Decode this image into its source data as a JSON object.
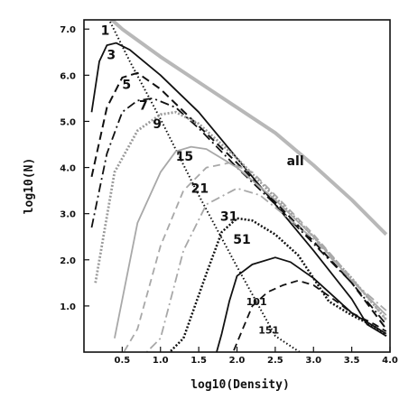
{
  "chart_data": {
    "type": "line",
    "title": "",
    "xlabel": "log10(Density)",
    "ylabel": "log10(N)",
    "xlim": [
      0,
      4.0
    ],
    "ylim": [
      0,
      7.2
    ],
    "grid": false,
    "x_ticks": [
      "0.5",
      "1.0",
      "1.5",
      "2.0",
      "2.5",
      "3.0",
      "3.5",
      "4.0"
    ],
    "y_ticks": [
      "1.0",
      "2.0",
      "3.0",
      "4.0",
      "5.0",
      "6.0",
      "7.0"
    ],
    "series": [
      {
        "name": "all",
        "color": "#b8b8b8",
        "dash": "solid",
        "width": 4,
        "label_at": [
          2.65,
          4.05
        ],
        "label_size": 14,
        "x": [
          0.3,
          0.5,
          1.0,
          1.5,
          2.0,
          2.5,
          3.0,
          3.5,
          3.95
        ],
        "y": [
          7.3,
          7.0,
          6.4,
          5.85,
          5.3,
          4.75,
          4.05,
          3.3,
          2.55
        ]
      },
      {
        "name": "1",
        "color": "#111111",
        "dash": "1.5,2.5",
        "width": 2,
        "label_at": [
          0.22,
          6.88
        ],
        "label_size": 14,
        "x": [
          0.3,
          0.6,
          1.0,
          1.5,
          2.0,
          2.5,
          3.0,
          3.5,
          3.8
        ],
        "y": [
          7.3,
          6.3,
          5.05,
          3.4,
          1.85,
          0.35,
          -0.2,
          -0.2,
          -0.2
        ]
      },
      {
        "name": "3",
        "color": "#111111",
        "dash": "solid",
        "width": 1.8,
        "label_at": [
          0.3,
          6.35
        ],
        "label_size": 14,
        "x": [
          0.1,
          0.2,
          0.3,
          0.42,
          0.6,
          1.0,
          1.5,
          2.0,
          2.5,
          3.0,
          3.5,
          3.7,
          3.95
        ],
        "y": [
          5.2,
          6.3,
          6.65,
          6.7,
          6.55,
          6.0,
          5.2,
          4.2,
          3.2,
          2.2,
          1.15,
          0.6,
          0.35
        ]
      },
      {
        "name": "5",
        "color": "#111111",
        "dash": "9,5",
        "width": 2,
        "label_at": [
          0.5,
          5.7
        ],
        "label_size": 14,
        "x": [
          0.1,
          0.3,
          0.5,
          0.7,
          1.0,
          1.5,
          2.0,
          2.5,
          3.0,
          3.5,
          3.95
        ],
        "y": [
          3.8,
          5.3,
          5.95,
          6.05,
          5.7,
          4.9,
          4.1,
          3.25,
          2.4,
          1.5,
          0.5
        ]
      },
      {
        "name": "7",
        "color": "#111111",
        "dash": "10,4,2,4",
        "width": 1.8,
        "label_at": [
          0.72,
          5.25
        ],
        "label_size": 14,
        "x": [
          0.1,
          0.3,
          0.5,
          0.7,
          0.9,
          1.2,
          1.5,
          2.0,
          2.5,
          3.0,
          3.5,
          3.95
        ],
        "y": [
          2.7,
          4.3,
          5.2,
          5.45,
          5.5,
          5.3,
          4.85,
          4.0,
          3.2,
          2.35,
          1.5,
          0.6
        ]
      },
      {
        "name": "9",
        "color": "#9a9a9a",
        "dash": "2,2",
        "width": 2.8,
        "label_at": [
          0.9,
          4.85
        ],
        "label_size": 14,
        "x": [
          0.15,
          0.4,
          0.7,
          1.0,
          1.2,
          1.5,
          2.0,
          2.5,
          3.0,
          3.5,
          3.95
        ],
        "y": [
          1.5,
          3.9,
          4.8,
          5.15,
          5.2,
          4.95,
          4.2,
          3.35,
          2.5,
          1.6,
          0.7
        ]
      },
      {
        "name": "15",
        "color": "#a8a8a8",
        "dash": "solid",
        "width": 1.8,
        "label_at": [
          1.2,
          4.15
        ],
        "label_size": 14,
        "x": [
          0.4,
          0.7,
          1.0,
          1.2,
          1.4,
          1.6,
          2.0,
          2.5,
          3.0,
          3.5,
          3.95
        ],
        "y": [
          0.3,
          2.8,
          3.9,
          4.35,
          4.45,
          4.4,
          4.0,
          3.3,
          2.5,
          1.55,
          0.8
        ]
      },
      {
        "name": "21",
        "color": "#a8a8a8",
        "dash": "8,5",
        "width": 1.8,
        "label_at": [
          1.4,
          3.45
        ],
        "label_size": 14,
        "x": [
          0.45,
          0.7,
          1.0,
          1.3,
          1.6,
          1.9,
          2.2,
          2.5,
          3.0,
          3.5,
          3.95
        ],
        "y": [
          -0.2,
          0.5,
          2.3,
          3.5,
          4.0,
          4.1,
          3.9,
          3.4,
          2.55,
          1.6,
          0.7
        ]
      },
      {
        "name": "31",
        "color": "#a8a8a8",
        "dash": "10,4,2,4",
        "width": 1.8,
        "label_at": [
          1.78,
          2.85
        ],
        "label_size": 14,
        "x": [
          0.7,
          1.0,
          1.3,
          1.6,
          2.0,
          2.3,
          2.6,
          3.0,
          3.5,
          3.95
        ],
        "y": [
          -0.2,
          0.3,
          2.2,
          3.2,
          3.55,
          3.4,
          3.0,
          2.45,
          1.55,
          0.9
        ]
      },
      {
        "name": "51",
        "color": "#111111",
        "dash": "2,2",
        "width": 2.5,
        "label_at": [
          1.95,
          2.35
        ],
        "label_size": 14,
        "x": [
          1.0,
          1.3,
          1.6,
          1.8,
          2.0,
          2.2,
          2.5,
          2.8,
          3.0,
          3.2,
          3.5,
          3.8,
          3.95
        ],
        "y": [
          -0.2,
          0.3,
          1.7,
          2.6,
          2.9,
          2.85,
          2.55,
          2.1,
          1.6,
          1.1,
          0.8,
          0.55,
          0.35
        ]
      },
      {
        "name": "101",
        "color": "#111111",
        "dash": "solid",
        "width": 1.8,
        "label_at": [
          2.12,
          1.02
        ],
        "label_size": 11,
        "x": [
          1.5,
          1.7,
          1.8,
          1.9,
          2.0,
          2.2,
          2.5,
          2.7,
          3.0,
          3.3,
          3.5,
          3.8,
          3.95
        ],
        "y": [
          -0.2,
          -0.2,
          0.4,
          1.1,
          1.65,
          1.9,
          2.05,
          1.95,
          1.6,
          1.15,
          0.85,
          0.55,
          0.4
        ]
      },
      {
        "name": "151",
        "color": "#111111",
        "dash": "8,5",
        "width": 1.8,
        "label_at": [
          2.28,
          0.4
        ],
        "label_size": 11,
        "x": [
          1.9,
          2.05,
          2.2,
          2.4,
          2.6,
          2.8,
          3.0,
          3.3,
          3.5,
          3.8,
          3.95
        ],
        "y": [
          -0.2,
          0.4,
          1.0,
          1.3,
          1.45,
          1.55,
          1.45,
          1.1,
          0.85,
          0.6,
          0.45
        ]
      }
    ]
  }
}
